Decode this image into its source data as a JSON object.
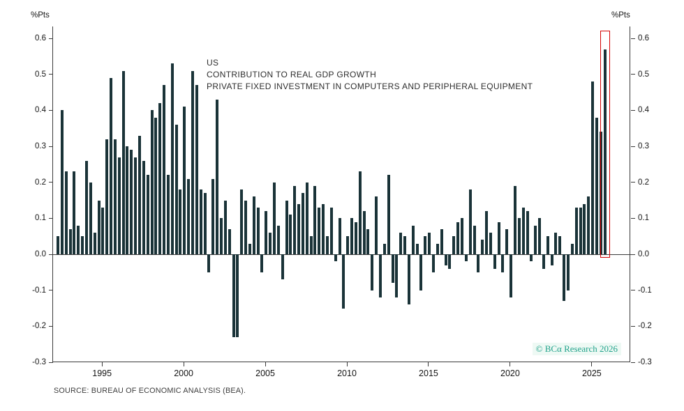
{
  "chart": {
    "left_unit": "%Pts",
    "right_unit": "%Pts",
    "title_lines": [
      "US",
      "CONTRIBUTION TO REAL GDP GROWTH",
      "PRIVATE FIXED INVESTMENT IN COMPUTERS AND PERIPHERAL EQUIPMENT"
    ],
    "watermark": "© BCα Research 2026",
    "source": "SOURCE: BUREAU OF ECONOMIC ANALYSIS (BEA)."
  },
  "chart_data": {
    "type": "bar",
    "title": "US — Contribution to Real GDP Growth: Private Fixed Investment in Computers and Peripheral Equipment",
    "xlabel": "",
    "ylabel": "%Pts",
    "ylim": [
      -0.3,
      0.6
    ],
    "xlim": [
      1992.0,
      2027.4
    ],
    "yticks": [
      0.6,
      0.5,
      0.4,
      0.3,
      0.2,
      0.1,
      0.0,
      -0.1,
      -0.2,
      -0.3
    ],
    "xticks": [
      1995,
      2000,
      2005,
      2010,
      2015,
      2020,
      2025
    ],
    "frequency": "quarterly",
    "series_start": "1992-Q2",
    "grid": "off",
    "legend": "none",
    "bar_color": "#1a3338",
    "highlight_color": "#d40000",
    "watermark_color": "#21a28b",
    "highlight_last_bar": true,
    "values": [
      0.05,
      0.4,
      0.23,
      0.07,
      0.23,
      0.08,
      0.05,
      0.26,
      0.2,
      0.06,
      0.15,
      0.13,
      0.32,
      0.49,
      0.32,
      0.27,
      0.51,
      0.3,
      0.29,
      0.27,
      0.33,
      0.26,
      0.22,
      0.4,
      0.38,
      0.42,
      0.47,
      0.22,
      0.53,
      0.36,
      0.18,
      0.41,
      0.21,
      0.51,
      0.47,
      0.18,
      0.17,
      -0.05,
      0.21,
      0.43,
      0.1,
      0.15,
      0.07,
      -0.23,
      -0.23,
      0.18,
      0.15,
      0.03,
      0.16,
      0.13,
      -0.05,
      0.12,
      0.06,
      0.2,
      0.08,
      -0.07,
      0.15,
      0.11,
      0.19,
      0.14,
      0.17,
      0.2,
      0.05,
      0.19,
      0.13,
      0.14,
      0.05,
      0.13,
      -0.02,
      0.1,
      -0.15,
      0.05,
      0.1,
      0.09,
      0.23,
      0.12,
      0.07,
      -0.1,
      0.16,
      -0.12,
      0.03,
      0.22,
      -0.08,
      -0.12,
      0.06,
      0.05,
      -0.14,
      0.08,
      0.03,
      -0.1,
      0.05,
      0.06,
      -0.05,
      0.03,
      0.07,
      -0.03,
      -0.04,
      0.05,
      0.09,
      0.1,
      -0.02,
      0.18,
      0.08,
      -0.05,
      0.04,
      0.12,
      0.06,
      -0.04,
      0.09,
      -0.05,
      0.07,
      -0.12,
      0.19,
      0.1,
      0.13,
      0.12,
      -0.02,
      0.08,
      0.1,
      -0.04,
      0.05,
      -0.03,
      0.06,
      0.05,
      -0.13,
      -0.1,
      0.03,
      0.13,
      0.13,
      0.14,
      0.16,
      0.48,
      0.38,
      0.34,
      0.57
    ]
  }
}
